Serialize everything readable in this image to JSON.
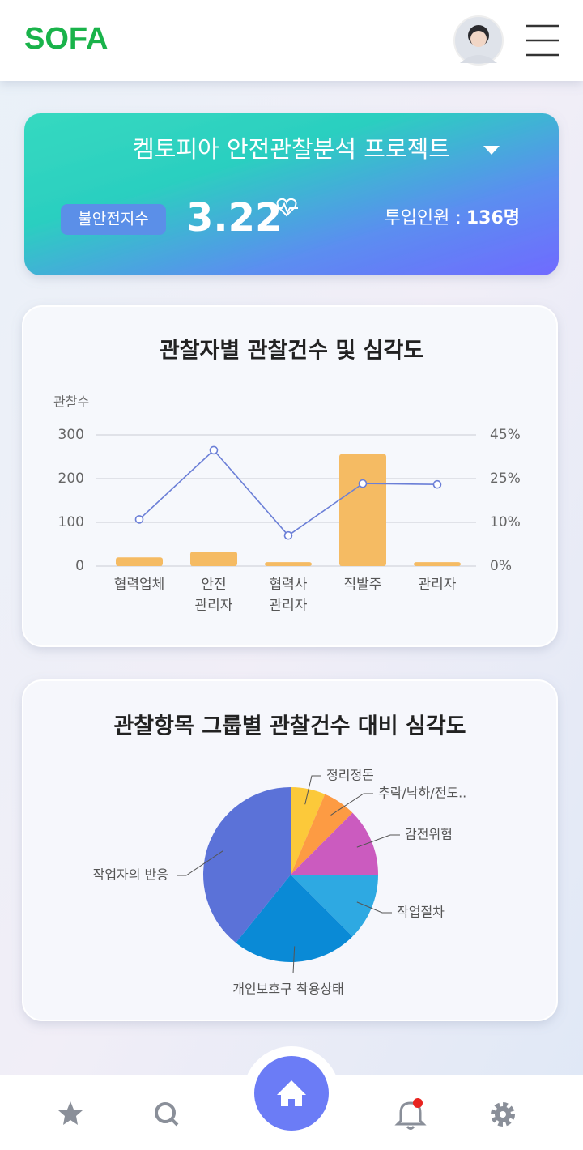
{
  "header": {
    "logo": "SOFA"
  },
  "project": {
    "title": "켐토피아 안전관찰분석 프로젝트",
    "index_label": "불안전지수",
    "index_value": 3.22,
    "staff_label": "투입인원 :",
    "staff_value": "136명"
  },
  "chart_data": [
    {
      "type": "bar-line",
      "title": "관찰자별 관찰건수 및 심각도",
      "y_label": "관찰수",
      "categories": [
        "협력업체",
        "안전\n관리자",
        "협력사\n관리자",
        "직발주",
        "관리자"
      ],
      "series": [
        {
          "type": "bar",
          "color": "#f5bb63",
          "values": [
            20,
            33,
            9,
            256,
            9
          ]
        },
        {
          "type": "line",
          "color": "#6b7fd7",
          "axis": "y2",
          "values": [
            11,
            38,
            7,
            23.3,
            23
          ]
        }
      ],
      "ylim": [
        0,
        300
      ],
      "yticks": [
        0,
        100,
        200,
        300
      ],
      "y2lim": [
        0,
        45
      ],
      "y2ticks": [
        {
          "value": 0,
          "label": "0%"
        },
        {
          "value": 10,
          "label": "10%"
        },
        {
          "value": 25,
          "label": "25%"
        },
        {
          "value": 45,
          "label": "45%"
        }
      ],
      "grid": true
    },
    {
      "type": "pie",
      "title": "관찰항목 그룹별 관찰건수 대비 심각도",
      "categories": [
        "정리정돈",
        "추락/낙하/전도..",
        "감전위험",
        "작업절차",
        "개인보호구 착용상태",
        "작업자의 반응"
      ],
      "values": [
        6.4,
        6.1,
        12.5,
        12.5,
        23.3,
        39.2
      ],
      "colors": [
        "#fcc93a",
        "#fd9b43",
        "#cb5bbf",
        "#2ea9e2",
        "#0a8ad6",
        "#5b72d8"
      ]
    }
  ]
}
